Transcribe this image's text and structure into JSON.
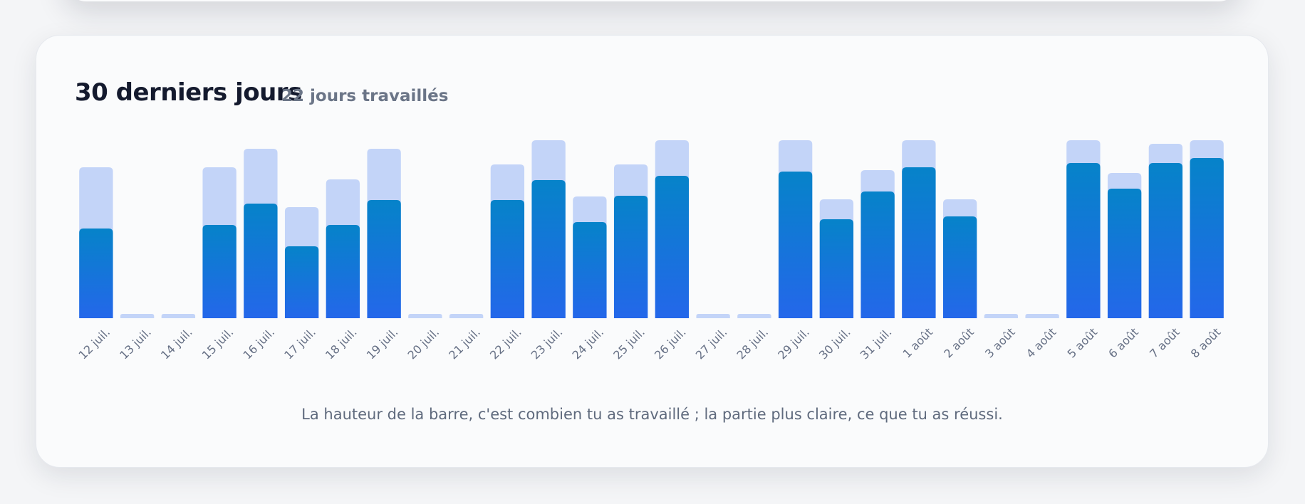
{
  "header": {
    "title": "30 derniers jours",
    "subtitle": "22 jours travaillés"
  },
  "caption": "La hauteur de la barre, c'est combien tu as travaillé ; la partie plus claire, ce que tu as réussi.",
  "colors": {
    "worked_light": "#c3d4f8",
    "success_top": "#0683c9",
    "success_bottom": "#2467ea",
    "tick_text": "#667085"
  },
  "chart_data": {
    "type": "bar",
    "stacked": "overlay",
    "categories": [
      "12 juil.",
      "13 juil.",
      "14 juil.",
      "15 juil.",
      "16 juil.",
      "17 juil.",
      "18 juil.",
      "19 juil.",
      "20 juil.",
      "21 juil.",
      "22 juil.",
      "23 juil.",
      "24 juil.",
      "25 juil.",
      "26 juil.",
      "27 juil.",
      "28 juil.",
      "29 juil.",
      "30 juil.",
      "31 juil.",
      "1 août",
      "2 août",
      "3 août",
      "4 août",
      "5 août",
      "6 août",
      "7 août",
      "8 août"
    ],
    "series": [
      {
        "values": [
          212,
          0,
          0,
          212,
          238,
          156,
          195,
          238,
          0,
          0,
          216,
          250,
          171,
          216,
          250,
          0,
          0,
          250,
          167,
          208,
          250,
          167,
          0,
          0,
          250,
          204,
          245,
          250
        ]
      },
      {
        "values": [
          126,
          0,
          0,
          131,
          161,
          101,
          131,
          166,
          0,
          0,
          166,
          194,
          135,
          172,
          200,
          0,
          0,
          206,
          139,
          178,
          212,
          143,
          0,
          0,
          218,
          182,
          218,
          225
        ]
      }
    ],
    "ylim": [
      0,
      250
    ],
    "grid": false,
    "legend": "none"
  }
}
